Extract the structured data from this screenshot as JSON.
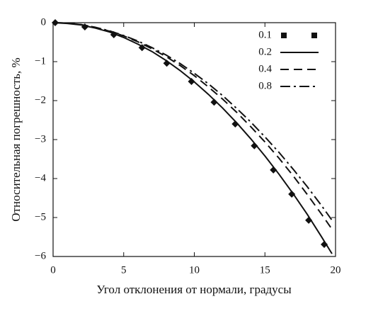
{
  "chart_data": {
    "type": "line",
    "x_label": "Угол отклонения от нормали, градусы",
    "y_label": "Относительная погрешность, %",
    "xlim": [
      0,
      20
    ],
    "ylim": [
      -6,
      0
    ],
    "xticks": [
      0,
      5,
      10,
      15,
      20
    ],
    "yticks": [
      0,
      {
        "value": -1,
        "label": "−1"
      },
      {
        "value": -2,
        "label": "−2"
      },
      {
        "value": -3,
        "label": "−3"
      },
      {
        "value": -4,
        "label": "−4"
      },
      {
        "value": -5,
        "label": "−5"
      },
      {
        "value": -6,
        "label": "−6"
      }
    ],
    "legend": "upper right",
    "series": [
      {
        "name": "0.1",
        "color": "#111111",
        "style": "markers",
        "x": [
          0.15,
          2.25,
          4.3,
          6.3,
          8.05,
          9.8,
          11.4,
          12.9,
          14.25,
          15.6,
          16.9,
          18.1,
          19.2
        ],
        "values": [
          0,
          -0.11,
          -0.31,
          -0.64,
          -1.04,
          -1.51,
          -2.04,
          -2.6,
          -3.16,
          -3.78,
          -4.4,
          -5.07,
          -5.69
        ]
      },
      {
        "name": "0.2",
        "color": "#111111",
        "style": "solid",
        "x": [
          0,
          1,
          2,
          3,
          4,
          5,
          6,
          7,
          8,
          9,
          10,
          11,
          12,
          13,
          14,
          15,
          16,
          17,
          18,
          19,
          19.75
        ],
        "values": [
          0,
          -0.02,
          -0.06,
          -0.14,
          -0.24,
          -0.38,
          -0.55,
          -0.74,
          -0.97,
          -1.23,
          -1.52,
          -1.84,
          -2.19,
          -2.57,
          -2.98,
          -3.42,
          -3.89,
          -4.39,
          -4.92,
          -5.49,
          -5.93
        ]
      },
      {
        "name": "0.4",
        "color": "#111111",
        "style": "dashed",
        "x": [
          0,
          1,
          2,
          3,
          4,
          5,
          6,
          7,
          8,
          9,
          10,
          11,
          12,
          13,
          14,
          15,
          16,
          17,
          18,
          19,
          19.75
        ],
        "values": [
          0,
          -0.01,
          -0.05,
          -0.12,
          -0.22,
          -0.34,
          -0.49,
          -0.67,
          -0.87,
          -1.1,
          -1.36,
          -1.65,
          -1.96,
          -2.3,
          -2.67,
          -3.06,
          -3.48,
          -3.93,
          -4.41,
          -4.91,
          -5.3
        ]
      },
      {
        "name": "0.8",
        "color": "#111111",
        "style": "dashdot",
        "x": [
          0,
          1,
          2,
          3,
          4,
          5,
          6,
          7,
          8,
          9,
          10,
          11,
          12,
          13,
          14,
          15,
          16,
          17,
          18,
          19,
          19.75
        ],
        "values": [
          0,
          -0.01,
          -0.05,
          -0.12,
          -0.21,
          -0.33,
          -0.47,
          -0.64,
          -0.83,
          -1.05,
          -1.3,
          -1.57,
          -1.87,
          -2.2,
          -2.55,
          -2.93,
          -3.33,
          -3.76,
          -4.21,
          -4.69,
          -5.07
        ]
      }
    ]
  }
}
